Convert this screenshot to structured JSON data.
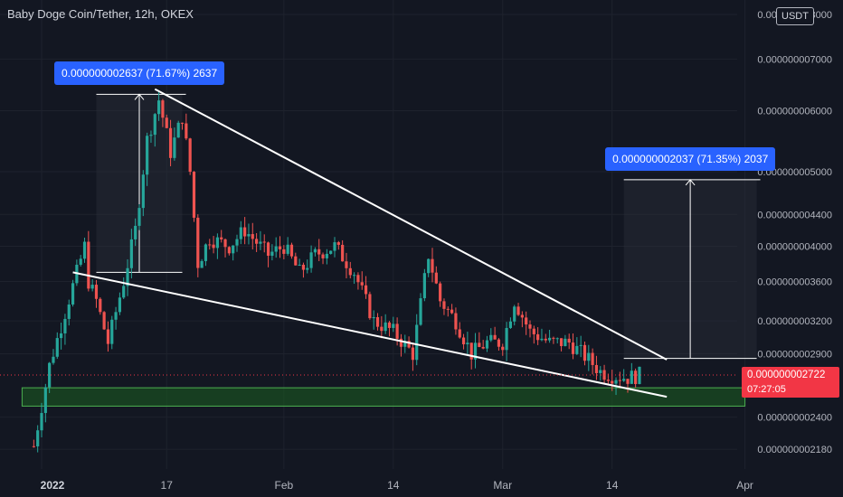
{
  "header": {
    "title": "Baby Doge Coin/Tether, 12h, OKEX",
    "currency_button": "USDT"
  },
  "price_tag": {
    "price": "0.000000002722",
    "countdown": "07:27:05"
  },
  "measure_labels": [
    {
      "text": "0.000000002637 (71.67%) 2637"
    },
    {
      "text": "0.000000002037 (71.35%) 2037"
    }
  ],
  "colors": {
    "background": "#131722",
    "up": "#26a69a",
    "down": "#ef5350",
    "trendline": "#ffffff",
    "support_zone": "#1b5e20",
    "label_blue": "#2962ff",
    "price_red": "#f23645"
  },
  "chart_data": {
    "type": "candlestick",
    "title": "Baby Doge Coin/Tether, 12h, OKEX",
    "y_scale": "log",
    "y_range": [
      2.1e-09,
      8e-09
    ],
    "y_ticks": [
      {
        "value": 8e-09,
        "label": "0.000000008000",
        "partial": true
      },
      {
        "value": 7e-09,
        "label": "0.000000007000"
      },
      {
        "value": 6e-09,
        "label": "0.000000006000"
      },
      {
        "value": 5e-09,
        "label": "0.000000005000"
      },
      {
        "value": 4.4e-09,
        "label": "0.000000004400"
      },
      {
        "value": 4e-09,
        "label": "0.000000004000"
      },
      {
        "value": 3.6e-09,
        "label": "0.000000003600"
      },
      {
        "value": 3.2e-09,
        "label": "0.000000003200"
      },
      {
        "value": 2.9e-09,
        "label": "0.000000002900"
      },
      {
        "value": 2.4e-09,
        "label": "0.000000002400"
      },
      {
        "value": 2.18e-09,
        "label": "0.000000002180"
      }
    ],
    "x_ticks": [
      {
        "label": "2022",
        "bold": true,
        "bar": 0
      },
      {
        "label": "17",
        "bar": 32
      },
      {
        "label": "Feb",
        "bar": 62
      },
      {
        "label": "14",
        "bar": 90
      },
      {
        "label": "Mar",
        "bar": 118
      },
      {
        "label": "14",
        "bar": 146
      },
      {
        "label": "Apr",
        "bar": 180
      }
    ],
    "key_prices": [
      {
        "bar": -2,
        "value": 2.2e-09
      },
      {
        "bar": 2,
        "value": 2.8e-09
      },
      {
        "bar": 11,
        "value": 4e-09
      },
      {
        "bar": 12,
        "value": 3.6e-09
      },
      {
        "bar": 14,
        "value": 3.4e-09
      },
      {
        "bar": 17,
        "value": 3e-09
      },
      {
        "bar": 21,
        "value": 3.6e-09
      },
      {
        "bar": 24,
        "value": 4.2e-09
      },
      {
        "bar": 27,
        "value": 5.5e-09
      },
      {
        "bar": 30,
        "value": 6.2e-09
      },
      {
        "bar": 33,
        "value": 5.3e-09
      },
      {
        "bar": 36,
        "value": 5.9e-09
      },
      {
        "bar": 38,
        "value": 5e-09
      },
      {
        "bar": 40,
        "value": 3.8e-09
      },
      {
        "bar": 43,
        "value": 4.1e-09
      },
      {
        "bar": 48,
        "value": 4e-09
      },
      {
        "bar": 52,
        "value": 4.2e-09
      },
      {
        "bar": 58,
        "value": 3.9e-09
      },
      {
        "bar": 62,
        "value": 4e-09
      },
      {
        "bar": 66,
        "value": 3.7e-09
      },
      {
        "bar": 70,
        "value": 3.9e-09
      },
      {
        "bar": 75,
        "value": 4e-09
      },
      {
        "bar": 80,
        "value": 3.7e-09
      },
      {
        "bar": 85,
        "value": 3.2e-09
      },
      {
        "bar": 90,
        "value": 3.1e-09
      },
      {
        "bar": 95,
        "value": 2.9e-09
      },
      {
        "bar": 99,
        "value": 3.9e-09
      },
      {
        "bar": 102,
        "value": 3.4e-09
      },
      {
        "bar": 106,
        "value": 3.2e-09
      },
      {
        "bar": 110,
        "value": 2.9e-09
      },
      {
        "bar": 114,
        "value": 3e-09
      },
      {
        "bar": 118,
        "value": 3e-09
      },
      {
        "bar": 121,
        "value": 3.4e-09
      },
      {
        "bar": 125,
        "value": 3.1e-09
      },
      {
        "bar": 130,
        "value": 3e-09
      },
      {
        "bar": 135,
        "value": 3e-09
      },
      {
        "bar": 140,
        "value": 2.85e-09
      },
      {
        "bar": 143,
        "value": 2.75e-09
      },
      {
        "bar": 146,
        "value": 2.72e-09
      },
      {
        "bar": 150,
        "value": 2.7e-09
      },
      {
        "bar": 153,
        "value": 2.722e-09
      }
    ],
    "trendlines": [
      {
        "name": "upper",
        "from": {
          "bar": 29,
          "value": 6.4e-09
        },
        "to": {
          "bar": 160,
          "value": 2.85e-09
        }
      },
      {
        "name": "lower",
        "from": {
          "bar": 8,
          "value": 3.7e-09
        },
        "to": {
          "bar": 160,
          "value": 2.55e-09
        }
      }
    ],
    "support_zone": {
      "from_bar": -5,
      "to_bar": 180,
      "high": 2.62e-09,
      "low": 2.48e-09
    },
    "measures": [
      {
        "from_bar": 14,
        "to_bar": 36,
        "low": 3.7e-09,
        "high": 6.3e-09,
        "value": 2.637e-09,
        "percent": 71.67
      },
      {
        "from_bar": 149,
        "to_bar": 183,
        "low": 2.86e-09,
        "high": 4.88e-09,
        "value": 2.037e-09,
        "percent": 71.35
      }
    ],
    "last_price": 2.722e-09
  }
}
